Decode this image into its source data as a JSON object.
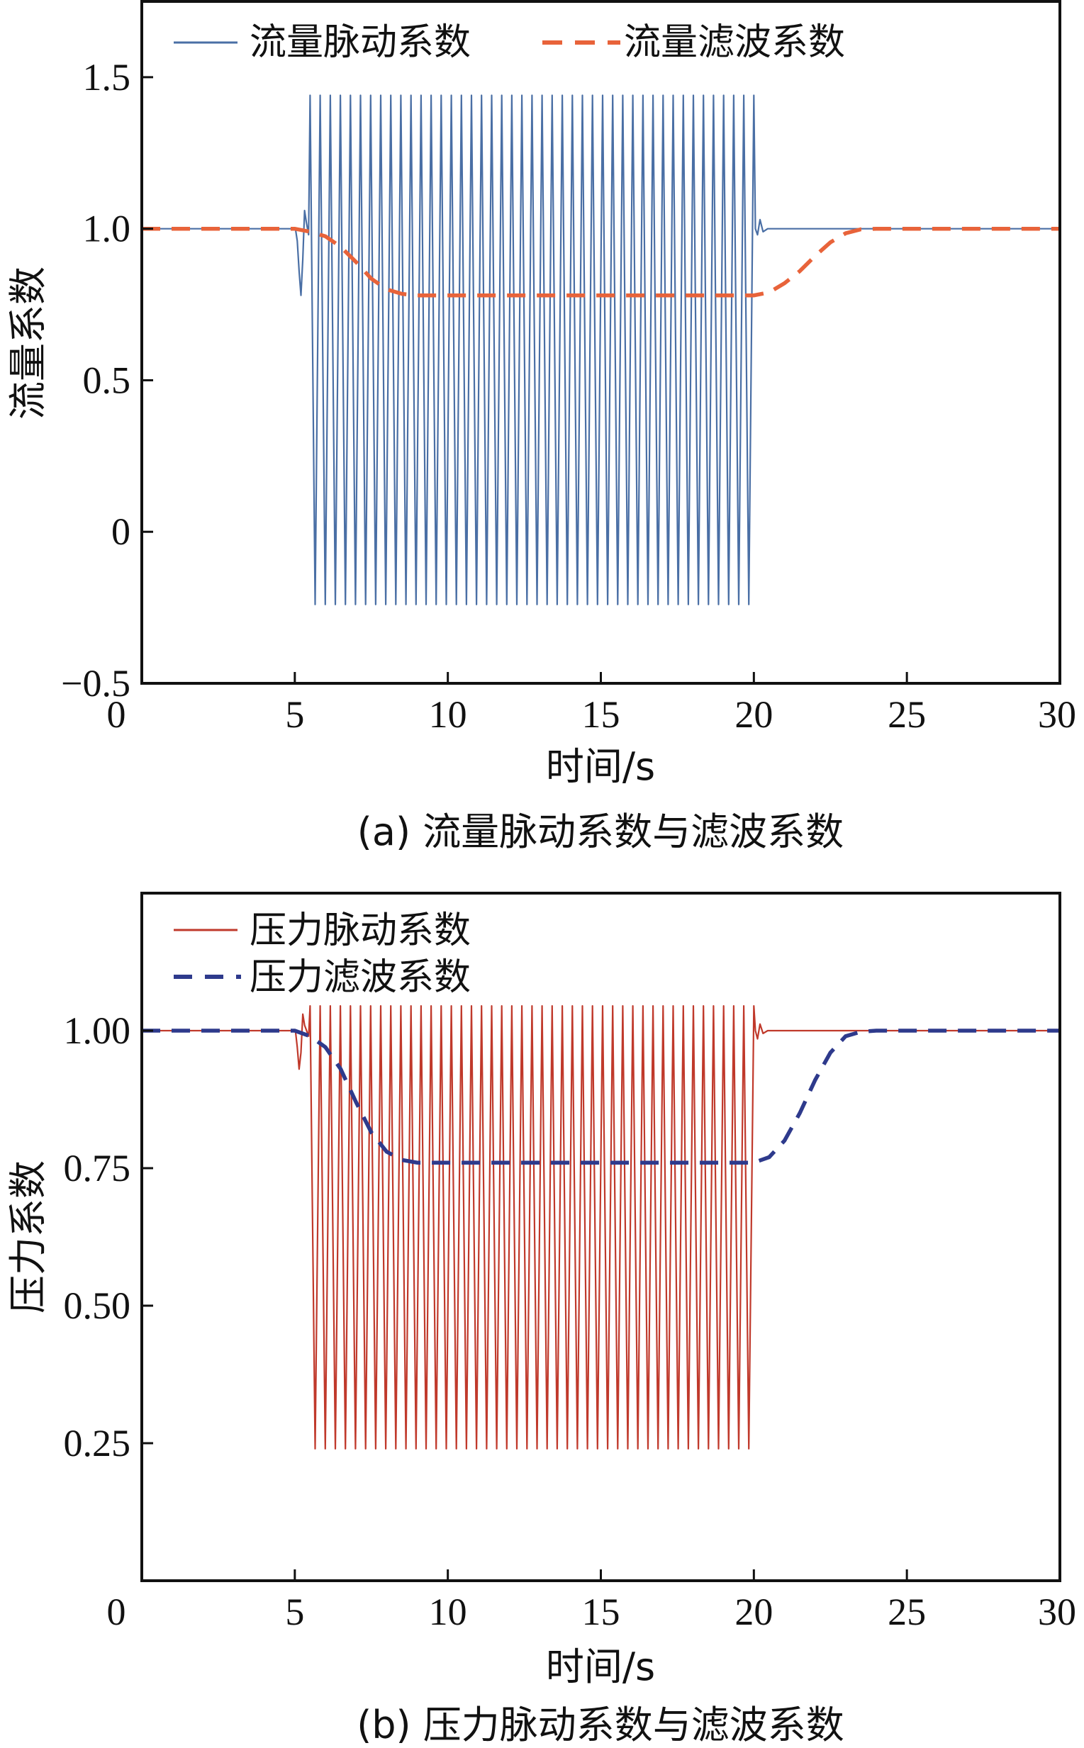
{
  "chart_data": [
    {
      "type": "line",
      "caption": "(a) 流量脉动系数与滤波系数",
      "xlabel": "时间/s",
      "ylabel": "流量系数",
      "xlim": [
        0,
        30
      ],
      "ylim": [
        -0.5,
        1.75
      ],
      "xticks": [
        0,
        5,
        10,
        15,
        20,
        25,
        30
      ],
      "xtick_labels": [
        "0",
        "5",
        "10",
        "15",
        "20",
        "25",
        "30"
      ],
      "yticks": [
        -0.5,
        0,
        0.5,
        1.0,
        1.5
      ],
      "ytick_labels": [
        "−0.5",
        "0",
        "0.5",
        "1.0",
        "1.5"
      ],
      "legend_position": "top",
      "series": [
        {
          "name": "流量脉动系数",
          "style": "solid",
          "color": "#4a6fa5",
          "baseline": 1.0,
          "oscillation": {
            "start": 5.5,
            "end": 20.0,
            "max": 1.44,
            "min": -0.24,
            "cycles": 44
          },
          "disturbances": [
            {
              "x": 5.02,
              "y": 1.0
            },
            {
              "x": 5.08,
              "y": 0.96
            },
            {
              "x": 5.14,
              "y": 0.86
            },
            {
              "x": 5.2,
              "y": 0.78
            },
            {
              "x": 5.26,
              "y": 0.9
            },
            {
              "x": 5.32,
              "y": 1.06
            },
            {
              "x": 5.38,
              "y": 1.02
            },
            {
              "x": 5.45,
              "y": 0.98
            },
            {
              "x": 20.05,
              "y": 1.0
            },
            {
              "x": 20.12,
              "y": 0.98
            },
            {
              "x": 20.2,
              "y": 1.03
            },
            {
              "x": 20.3,
              "y": 0.99
            },
            {
              "x": 20.45,
              "y": 1.0
            }
          ]
        },
        {
          "name": "流量滤波系数",
          "style": "dashed",
          "color": "#e8633a",
          "x": [
            0,
            5.0,
            5.5,
            6.0,
            6.5,
            7.0,
            7.5,
            8.0,
            8.5,
            9.0,
            10,
            12,
            14,
            16,
            18,
            20.0,
            20.5,
            21.0,
            21.5,
            22.0,
            22.5,
            23.0,
            23.5,
            24.0,
            26,
            28,
            30
          ],
          "y": [
            1.0,
            1.0,
            0.99,
            0.975,
            0.94,
            0.89,
            0.835,
            0.8,
            0.785,
            0.78,
            0.78,
            0.78,
            0.78,
            0.78,
            0.78,
            0.78,
            0.79,
            0.82,
            0.86,
            0.91,
            0.955,
            0.985,
            0.998,
            1.0,
            1.0,
            1.0,
            1.0
          ]
        }
      ]
    },
    {
      "type": "line",
      "caption": "(b) 压力脉动系数与滤波系数",
      "xlabel": "时间/s",
      "ylabel": "压力系数",
      "xlim": [
        0,
        30
      ],
      "ylim": [
        0.0,
        1.25
      ],
      "xticks": [
        0,
        5,
        10,
        15,
        20,
        25,
        30
      ],
      "xtick_labels": [
        "0",
        "5",
        "10",
        "15",
        "20",
        "25",
        "30"
      ],
      "yticks": [
        0.25,
        0.5,
        0.75,
        1.0
      ],
      "ytick_labels": [
        "0.25",
        "0.50",
        "0.75",
        "1.00"
      ],
      "legend_position": "top-left",
      "series": [
        {
          "name": "压力脉动系数",
          "style": "solid",
          "color": "#c0392b",
          "baseline": 1.0,
          "oscillation": {
            "start": 5.5,
            "end": 20.0,
            "max": 1.045,
            "min": 0.24,
            "cycles": 44
          },
          "disturbances": [
            {
              "x": 5.02,
              "y": 1.0
            },
            {
              "x": 5.08,
              "y": 0.97
            },
            {
              "x": 5.14,
              "y": 0.93
            },
            {
              "x": 5.2,
              "y": 0.96
            },
            {
              "x": 5.26,
              "y": 1.03
            },
            {
              "x": 5.32,
              "y": 1.01
            },
            {
              "x": 5.45,
              "y": 0.99
            },
            {
              "x": 20.05,
              "y": 1.0
            },
            {
              "x": 20.12,
              "y": 0.985
            },
            {
              "x": 20.2,
              "y": 1.012
            },
            {
              "x": 20.3,
              "y": 0.995
            },
            {
              "x": 20.45,
              "y": 1.0
            }
          ]
        },
        {
          "name": "压力滤波系数",
          "style": "dashed",
          "color": "#2e3a8c",
          "x": [
            0,
            5.0,
            5.5,
            6.0,
            6.5,
            7.0,
            7.5,
            8.0,
            8.5,
            9.0,
            10,
            12,
            14,
            16,
            18,
            20.0,
            20.5,
            21.0,
            21.5,
            22.0,
            22.5,
            23.0,
            23.5,
            24.0,
            26,
            28,
            30
          ],
          "y": [
            1.0,
            1.0,
            0.99,
            0.97,
            0.93,
            0.87,
            0.815,
            0.78,
            0.765,
            0.76,
            0.76,
            0.76,
            0.76,
            0.76,
            0.76,
            0.76,
            0.77,
            0.8,
            0.85,
            0.91,
            0.96,
            0.99,
            0.998,
            1.0,
            1.0,
            1.0,
            1.0
          ]
        }
      ]
    }
  ]
}
